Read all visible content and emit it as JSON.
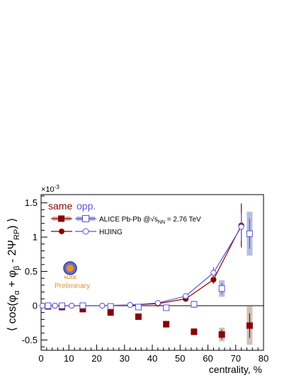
{
  "chart_data": {
    "type": "scatter",
    "x_axis": {
      "label": "centrality, %",
      "range": [
        0,
        80
      ],
      "ticks": [
        0,
        10,
        20,
        30,
        40,
        50,
        60,
        70,
        80
      ]
    },
    "y_axis": {
      "label_parts": [
        "⟨ cos(φ",
        "α",
        " + φ",
        "β",
        " - 2Ψ",
        "RP",
        ") ⟩"
      ],
      "range": [
        -0.65,
        1.62
      ],
      "ticks": [
        -0.5,
        0,
        0.5,
        1,
        1.5
      ],
      "tick_labels": [
        "-0.5",
        "0",
        "0.5",
        "1",
        "1.5"
      ],
      "multiplier": "×10",
      "multiplier_exp": "-3"
    },
    "legend": {
      "same_header": "same",
      "opp_header": "opp.",
      "row1_prefix": "ALICE Pb-Pb @",
      "row1_sqrt": "√s",
      "row1_sub": "NN",
      "row1_suffix": " = 2.76 TeV",
      "row2": "HIJING",
      "placement": "top-left"
    },
    "logo": {
      "text": "ALICE",
      "caption": "Preliminary"
    },
    "zero_line": true,
    "colors": {
      "alice": "#8b0000",
      "hijing": "#5a55d6",
      "syst": "#c9bdb0",
      "syst_opp": "#aeb8d8",
      "logo_orange": "#e8902c"
    },
    "series": [
      {
        "name": "ALICE same",
        "marker": "filled-square",
        "points": [
          {
            "x": 2.5,
            "y": -0.01,
            "err": 0.01,
            "sys": 0.01
          },
          {
            "x": 7.5,
            "y": -0.02,
            "err": 0.01,
            "sys": 0.01
          },
          {
            "x": 15,
            "y": -0.05,
            "err": 0.01,
            "sys": 0.01
          },
          {
            "x": 25,
            "y": -0.1,
            "err": 0.015,
            "sys": 0.02
          },
          {
            "x": 35,
            "y": -0.16,
            "err": 0.02,
            "sys": 0.02
          },
          {
            "x": 45,
            "y": -0.27,
            "err": 0.03,
            "sys": 0.05
          },
          {
            "x": 55,
            "y": -0.38,
            "err": 0.04,
            "sys": 0.05
          },
          {
            "x": 65,
            "y": -0.42,
            "err": 0.07,
            "sys": 0.1
          },
          {
            "x": 75,
            "y": -0.29,
            "err": 0.18,
            "sys": 0.28
          }
        ]
      },
      {
        "name": "ALICE opp.",
        "marker": "open-square",
        "points": [
          {
            "x": 2.5,
            "y": 0.0,
            "err": 0.01,
            "sys": 0.01
          },
          {
            "x": 7.5,
            "y": 0.0,
            "err": 0.01,
            "sys": 0.01
          },
          {
            "x": 15,
            "y": 0.0,
            "err": 0.01,
            "sys": 0.01
          },
          {
            "x": 25,
            "y": -0.01,
            "err": 0.015,
            "sys": 0.02
          },
          {
            "x": 35,
            "y": -0.02,
            "err": 0.02,
            "sys": 0.02
          },
          {
            "x": 45,
            "y": -0.03,
            "err": 0.02,
            "sys": 0.03
          },
          {
            "x": 55,
            "y": 0.02,
            "err": 0.04,
            "sys": 0.05
          },
          {
            "x": 65,
            "y": 0.25,
            "err": 0.08,
            "sys": 0.12
          },
          {
            "x": 75,
            "y": 1.05,
            "err": 0.22,
            "sys": 0.32
          }
        ]
      },
      {
        "name": "HIJING same",
        "marker": "filled-circle",
        "points": [
          {
            "x": 0.5,
            "y": 0.0,
            "err": 0.01
          },
          {
            "x": 5,
            "y": 0.0,
            "err": 0.01
          },
          {
            "x": 11,
            "y": 0.0,
            "err": 0.01
          },
          {
            "x": 22,
            "y": 0.0,
            "err": 0.01
          },
          {
            "x": 32,
            "y": 0.01,
            "err": 0.01
          },
          {
            "x": 42,
            "y": 0.03,
            "err": 0.01
          },
          {
            "x": 52,
            "y": 0.1,
            "err": 0.02
          },
          {
            "x": 62,
            "y": 0.38,
            "err": 0.06
          },
          {
            "x": 72,
            "y": 1.17,
            "err": 0.32
          }
        ]
      },
      {
        "name": "HIJING opp.",
        "marker": "open-circle",
        "points": [
          {
            "x": 0.5,
            "y": 0.0,
            "err": 0.01
          },
          {
            "x": 5,
            "y": 0.0,
            "err": 0.01
          },
          {
            "x": 11,
            "y": 0.0,
            "err": 0.01
          },
          {
            "x": 22,
            "y": 0.0,
            "err": 0.01
          },
          {
            "x": 32,
            "y": 0.01,
            "err": 0.01
          },
          {
            "x": 42,
            "y": 0.04,
            "err": 0.01
          },
          {
            "x": 52,
            "y": 0.14,
            "err": 0.02
          },
          {
            "x": 62,
            "y": 0.48,
            "err": 0.08
          },
          {
            "x": 72,
            "y": 1.15,
            "err": 0.2
          }
        ]
      }
    ]
  }
}
